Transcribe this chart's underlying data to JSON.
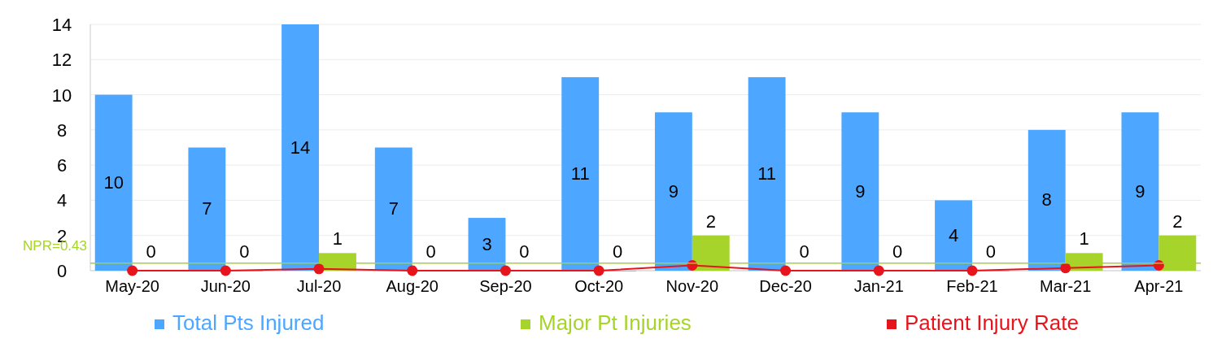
{
  "chart_data": {
    "type": "bar",
    "categories": [
      "May-20",
      "Jun-20",
      "Jul-20",
      "Aug-20",
      "Sep-20",
      "Oct-20",
      "Nov-20",
      "Dec-20",
      "Jan-21",
      "Feb-21",
      "Mar-21",
      "Apr-21"
    ],
    "series": [
      {
        "name": "Total Pts Injured",
        "color": "#4da6ff",
        "values": [
          10,
          7,
          14,
          7,
          3,
          11,
          9,
          11,
          9,
          4,
          8,
          9
        ],
        "value_labels": [
          "10",
          "7",
          "14",
          "7",
          "3",
          "11",
          "9",
          "11",
          "9",
          "4",
          "8",
          "9"
        ]
      },
      {
        "name": "Major Pt Injuries",
        "color": "#a6d42a",
        "values": [
          0,
          0,
          1,
          0,
          0,
          0,
          2,
          0,
          0,
          0,
          1,
          2
        ],
        "value_labels": [
          "0",
          "0",
          "1",
          "0",
          "0",
          "0",
          "2",
          "0",
          "0",
          "0",
          "1",
          "2"
        ]
      },
      {
        "name": "Patient Injury Rate",
        "type": "line",
        "color": "#e8141c",
        "marker": "circle",
        "values": [
          0,
          0,
          0.1,
          0,
          0,
          0,
          0.3,
          0,
          0,
          0,
          0.15,
          0.3
        ]
      }
    ],
    "ylim": [
      0,
      14
    ],
    "yticks": [
      0,
      2,
      4,
      6,
      8,
      10,
      12,
      14
    ],
    "grid": "y",
    "legend": "bottom",
    "ref_lines": [
      {
        "axis": "y",
        "value": 0.43,
        "label": "NPR=0.43",
        "color": "#a6d42a"
      }
    ]
  }
}
